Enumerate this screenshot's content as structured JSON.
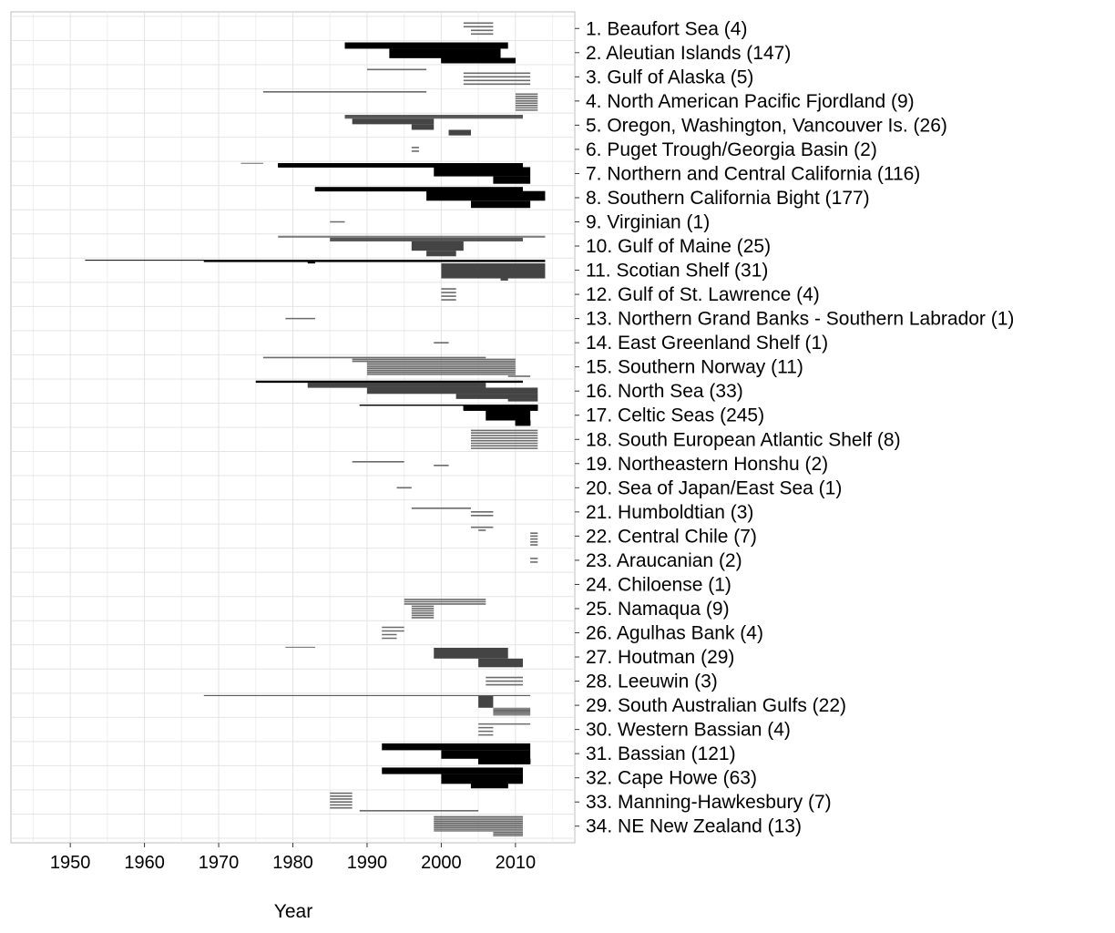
{
  "chart_data": {
    "type": "bar",
    "subtype": "timeline-segments",
    "xlabel": "Year",
    "ylabel": "",
    "title": "",
    "xlim": [
      1942,
      2018
    ],
    "xticks": [
      1950,
      1960,
      1970,
      1980,
      1990,
      2000,
      2010
    ],
    "xtick_labels": [
      "1950",
      "1960",
      "1970",
      "1980",
      "1990",
      "2000",
      "2010"
    ],
    "grid": true,
    "legend": "none",
    "colors": {
      "segment": "#000000",
      "grid": "#e4e4e4",
      "panel_border": "#bdbdbd"
    },
    "categories": [
      {
        "label": "1. Beaufort Sea (4)",
        "n": 4,
        "bands": [
          {
            "start": 2003,
            "end": 2007,
            "lines": 2,
            "shade": "gray"
          },
          {
            "start": 2004,
            "end": 2007,
            "lines": 2,
            "shade": "gray"
          }
        ]
      },
      {
        "label": "2. Aleutian Islands (147)",
        "n": 147,
        "bands": [
          {
            "start": 1987,
            "end": 2009,
            "lines": 40,
            "shade": "black"
          },
          {
            "start": 1993,
            "end": 2008,
            "lines": 60,
            "shade": "black"
          },
          {
            "start": 2000,
            "end": 2010,
            "lines": 30,
            "shade": "black"
          }
        ]
      },
      {
        "label": "3. Gulf of Alaska (5)",
        "n": 5,
        "bands": [
          {
            "start": 1990,
            "end": 1998,
            "lines": 1,
            "shade": "gray"
          },
          {
            "start": 2003,
            "end": 2012,
            "lines": 4,
            "shade": "gray"
          }
        ]
      },
      {
        "label": "4. North American Pacific Fjordland (9)",
        "n": 9,
        "bands": [
          {
            "start": 1976,
            "end": 1998,
            "lines": 1,
            "shade": "gray"
          },
          {
            "start": 2010,
            "end": 2013,
            "lines": 8,
            "shade": "gray"
          }
        ]
      },
      {
        "label": "5. Oregon, Washington, Vancouver Is. (26)",
        "n": 26,
        "bands": [
          {
            "start": 1987,
            "end": 2011,
            "lines": 4,
            "shade": "dark"
          },
          {
            "start": 1988,
            "end": 1999,
            "lines": 6,
            "shade": "dark"
          },
          {
            "start": 1996,
            "end": 1999,
            "lines": 6,
            "shade": "dark"
          },
          {
            "start": 2001,
            "end": 2004,
            "lines": 6,
            "shade": "dark"
          }
        ]
      },
      {
        "label": "6. Puget Trough/Georgia Basin (2)",
        "n": 2,
        "bands": [
          {
            "start": 1996,
            "end": 1997,
            "lines": 2,
            "shade": "gray"
          }
        ]
      },
      {
        "label": "7. Northern and Central California (116)",
        "n": 116,
        "bands": [
          {
            "start": 1973,
            "end": 1976,
            "lines": 1,
            "shade": "gray"
          },
          {
            "start": 1978,
            "end": 2011,
            "lines": 20,
            "shade": "black"
          },
          {
            "start": 1999,
            "end": 2012,
            "lines": 50,
            "shade": "black"
          },
          {
            "start": 2007,
            "end": 2012,
            "lines": 40,
            "shade": "black"
          }
        ]
      },
      {
        "label": "8. Southern California Bight (177)",
        "n": 177,
        "bands": [
          {
            "start": 1983,
            "end": 2011,
            "lines": 30,
            "shade": "black"
          },
          {
            "start": 1998,
            "end": 2014,
            "lines": 80,
            "shade": "black"
          },
          {
            "start": 2004,
            "end": 2012,
            "lines": 60,
            "shade": "black"
          }
        ]
      },
      {
        "label": "9. Virginian (1)",
        "n": 1,
        "bands": [
          {
            "start": 1985,
            "end": 1987,
            "lines": 1,
            "shade": "gray"
          }
        ]
      },
      {
        "label": "10. Gulf of Maine (25)",
        "n": 25,
        "bands": [
          {
            "start": 1978,
            "end": 2014,
            "lines": 2,
            "shade": "gray"
          },
          {
            "start": 1985,
            "end": 2011,
            "lines": 4,
            "shade": "dark"
          },
          {
            "start": 1996,
            "end": 2003,
            "lines": 10,
            "shade": "dark"
          },
          {
            "start": 1998,
            "end": 2002,
            "lines": 6,
            "shade": "dark"
          }
        ]
      },
      {
        "label": "11. Scotian Shelf (31)",
        "n": 31,
        "bands": [
          {
            "start": 1952,
            "end": 2014,
            "lines": 1,
            "shade": "black"
          },
          {
            "start": 1968,
            "end": 2014,
            "lines": 2,
            "shade": "black"
          },
          {
            "start": 1982,
            "end": 1983,
            "lines": 2,
            "shade": "black"
          },
          {
            "start": 2000,
            "end": 2014,
            "lines": 22,
            "shade": "dark"
          },
          {
            "start": 2008,
            "end": 2009,
            "lines": 3,
            "shade": "dark"
          }
        ]
      },
      {
        "label": "12. Gulf of St. Lawrence (4)",
        "n": 4,
        "bands": [
          {
            "start": 2000,
            "end": 2002,
            "lines": 4,
            "shade": "gray"
          }
        ]
      },
      {
        "label": "13. Northern Grand Banks - Southern Labrador (1)",
        "n": 1,
        "bands": [
          {
            "start": 1979,
            "end": 1983,
            "lines": 1,
            "shade": "gray"
          }
        ]
      },
      {
        "label": "14. East Greenland Shelf (1)",
        "n": 1,
        "bands": [
          {
            "start": 1999,
            "end": 2001,
            "lines": 1,
            "shade": "gray"
          }
        ]
      },
      {
        "label": "15. Southern Norway (11)",
        "n": 11,
        "bands": [
          {
            "start": 1976,
            "end": 2006,
            "lines": 1,
            "shade": "gray"
          },
          {
            "start": 1988,
            "end": 2010,
            "lines": 2,
            "shade": "gray"
          },
          {
            "start": 1990,
            "end": 2010,
            "lines": 7,
            "shade": "gray"
          },
          {
            "start": 2009,
            "end": 2012,
            "lines": 1,
            "shade": "gray"
          }
        ]
      },
      {
        "label": "16. North Sea (33)",
        "n": 33,
        "bands": [
          {
            "start": 1975,
            "end": 2011,
            "lines": 3,
            "shade": "black"
          },
          {
            "start": 1982,
            "end": 2006,
            "lines": 8,
            "shade": "dark"
          },
          {
            "start": 1990,
            "end": 2013,
            "lines": 10,
            "shade": "dark"
          },
          {
            "start": 2002,
            "end": 2013,
            "lines": 8,
            "shade": "dark"
          },
          {
            "start": 2009,
            "end": 2013,
            "lines": 4,
            "shade": "dark"
          }
        ]
      },
      {
        "label": "17. Celtic Seas (245)",
        "n": 245,
        "bands": [
          {
            "start": 1989,
            "end": 2013,
            "lines": 3,
            "shade": "black"
          },
          {
            "start": 2003,
            "end": 2013,
            "lines": 30,
            "shade": "black"
          },
          {
            "start": 2006,
            "end": 2012,
            "lines": 60,
            "shade": "black"
          },
          {
            "start": 2010,
            "end": 2012,
            "lines": 30,
            "shade": "black"
          }
        ]
      },
      {
        "label": "18. South European Atlantic Shelf (8)",
        "n": 8,
        "bands": [
          {
            "start": 2004,
            "end": 2013,
            "lines": 8,
            "shade": "gray"
          }
        ]
      },
      {
        "label": "19. Northeastern Honshu (2)",
        "n": 2,
        "bands": [
          {
            "start": 1988,
            "end": 1995,
            "lines": 1,
            "shade": "gray"
          },
          {
            "start": 1999,
            "end": 2001,
            "lines": 1,
            "shade": "gray"
          }
        ]
      },
      {
        "label": "20. Sea of Japan/East Sea (1)",
        "n": 1,
        "bands": [
          {
            "start": 1994,
            "end": 1996,
            "lines": 1,
            "shade": "gray"
          }
        ]
      },
      {
        "label": "21. Humboldtian (3)",
        "n": 3,
        "bands": [
          {
            "start": 1996,
            "end": 2004,
            "lines": 1,
            "shade": "gray"
          },
          {
            "start": 2004,
            "end": 2007,
            "lines": 2,
            "shade": "gray"
          }
        ]
      },
      {
        "label": "22. Central Chile (7)",
        "n": 7,
        "bands": [
          {
            "start": 2004,
            "end": 2007,
            "lines": 1,
            "shade": "gray"
          },
          {
            "start": 2005,
            "end": 2006,
            "lines": 1,
            "shade": "gray"
          },
          {
            "start": 2012,
            "end": 2013,
            "lines": 5,
            "shade": "gray"
          }
        ]
      },
      {
        "label": "23. Araucanian (2)",
        "n": 2,
        "bands": [
          {
            "start": 2012,
            "end": 2013,
            "lines": 2,
            "shade": "gray"
          }
        ]
      },
      {
        "label": "24. Chiloense (1)",
        "n": 1,
        "bands": []
      },
      {
        "label": "25. Namaqua (9)",
        "n": 9,
        "bands": [
          {
            "start": 1995,
            "end": 2006,
            "lines": 3,
            "shade": "gray"
          },
          {
            "start": 1996,
            "end": 1999,
            "lines": 6,
            "shade": "gray"
          }
        ]
      },
      {
        "label": "26. Agulhas Bank (4)",
        "n": 4,
        "bands": [
          {
            "start": 1992,
            "end": 1995,
            "lines": 2,
            "shade": "gray"
          },
          {
            "start": 1992,
            "end": 1994,
            "lines": 2,
            "shade": "gray"
          }
        ]
      },
      {
        "label": "27. Houtman (29)",
        "n": 29,
        "bands": [
          {
            "start": 1979,
            "end": 1983,
            "lines": 1,
            "shade": "gray"
          },
          {
            "start": 1999,
            "end": 2009,
            "lines": 10,
            "shade": "dark"
          },
          {
            "start": 2005,
            "end": 2011,
            "lines": 8,
            "shade": "dark"
          }
        ]
      },
      {
        "label": "28. Leeuwin (3)",
        "n": 3,
        "bands": [
          {
            "start": 2006,
            "end": 2011,
            "lines": 3,
            "shade": "gray"
          }
        ]
      },
      {
        "label": "29. South Australian Gulfs (22)",
        "n": 22,
        "bands": [
          {
            "start": 1968,
            "end": 2012,
            "lines": 1,
            "shade": "dark"
          },
          {
            "start": 2005,
            "end": 2007,
            "lines": 12,
            "shade": "dark"
          },
          {
            "start": 2007,
            "end": 2012,
            "lines": 8,
            "shade": "gray"
          }
        ]
      },
      {
        "label": "30. Western Bassian (4)",
        "n": 4,
        "bands": [
          {
            "start": 2005,
            "end": 2012,
            "lines": 1,
            "shade": "gray"
          },
          {
            "start": 2005,
            "end": 2007,
            "lines": 3,
            "shade": "gray"
          }
        ]
      },
      {
        "label": "31. Bassian (121)",
        "n": 121,
        "bands": [
          {
            "start": 1992,
            "end": 2012,
            "lines": 40,
            "shade": "black"
          },
          {
            "start": 2000,
            "end": 2012,
            "lines": 50,
            "shade": "black"
          },
          {
            "start": 2005,
            "end": 2012,
            "lines": 30,
            "shade": "black"
          }
        ]
      },
      {
        "label": "32. Cape Howe (63)",
        "n": 63,
        "bands": [
          {
            "start": 1992,
            "end": 2011,
            "lines": 20,
            "shade": "black"
          },
          {
            "start": 2000,
            "end": 2011,
            "lines": 30,
            "shade": "black"
          },
          {
            "start": 2004,
            "end": 2009,
            "lines": 13,
            "shade": "black"
          }
        ]
      },
      {
        "label": "33. Manning-Hawkesbury (7)",
        "n": 7,
        "bands": [
          {
            "start": 1985,
            "end": 1988,
            "lines": 6,
            "shade": "gray"
          },
          {
            "start": 1989,
            "end": 2005,
            "lines": 1,
            "shade": "gray"
          }
        ]
      },
      {
        "label": "34. NE New Zealand (13)",
        "n": 13,
        "bands": [
          {
            "start": 1999,
            "end": 2011,
            "lines": 10,
            "shade": "gray"
          },
          {
            "start": 2007,
            "end": 2011,
            "lines": 3,
            "shade": "gray"
          }
        ]
      }
    ]
  }
}
